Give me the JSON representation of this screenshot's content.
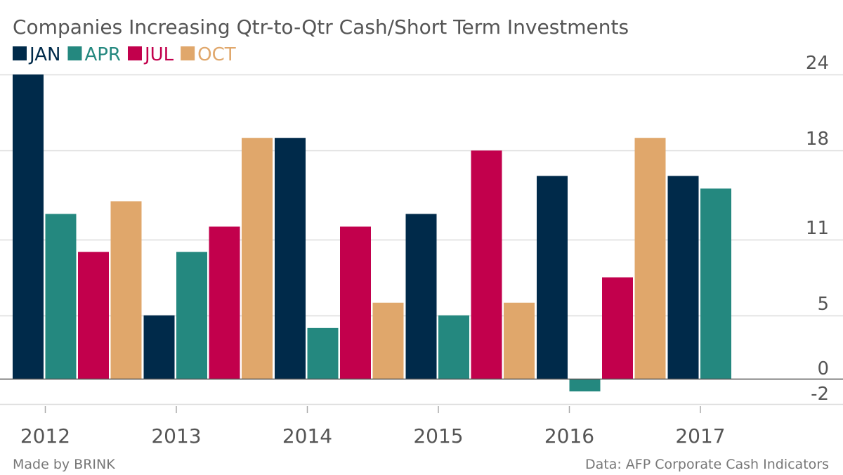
{
  "chart_data": {
    "type": "bar",
    "title": "Companies Increasing Qtr-to-Qtr Cash/Short Term Investments",
    "categories": [
      "2012",
      "2013",
      "2014",
      "2015",
      "2016",
      "2017"
    ],
    "series": [
      {
        "name": "JAN",
        "color": "#002a4a",
        "values": [
          24,
          5,
          19,
          13,
          16,
          16
        ]
      },
      {
        "name": "APR",
        "color": "#24887f",
        "values": [
          13,
          10,
          4,
          5,
          -1,
          15
        ]
      },
      {
        "name": "JUL",
        "color": "#c2004c",
        "values": [
          10,
          12,
          12,
          18,
          8,
          null
        ]
      },
      {
        "name": "OCT",
        "color": "#e0a76b",
        "values": [
          14,
          19,
          6,
          6,
          19,
          null
        ]
      }
    ],
    "yticks": [
      24,
      18,
      11,
      5,
      0,
      -2
    ],
    "ylim": [
      -2,
      24
    ],
    "grid": true,
    "legend_position": "top-left"
  },
  "footer": {
    "left": "Made by BRINK",
    "right": "Data: AFP Corporate Cash Indicators"
  }
}
